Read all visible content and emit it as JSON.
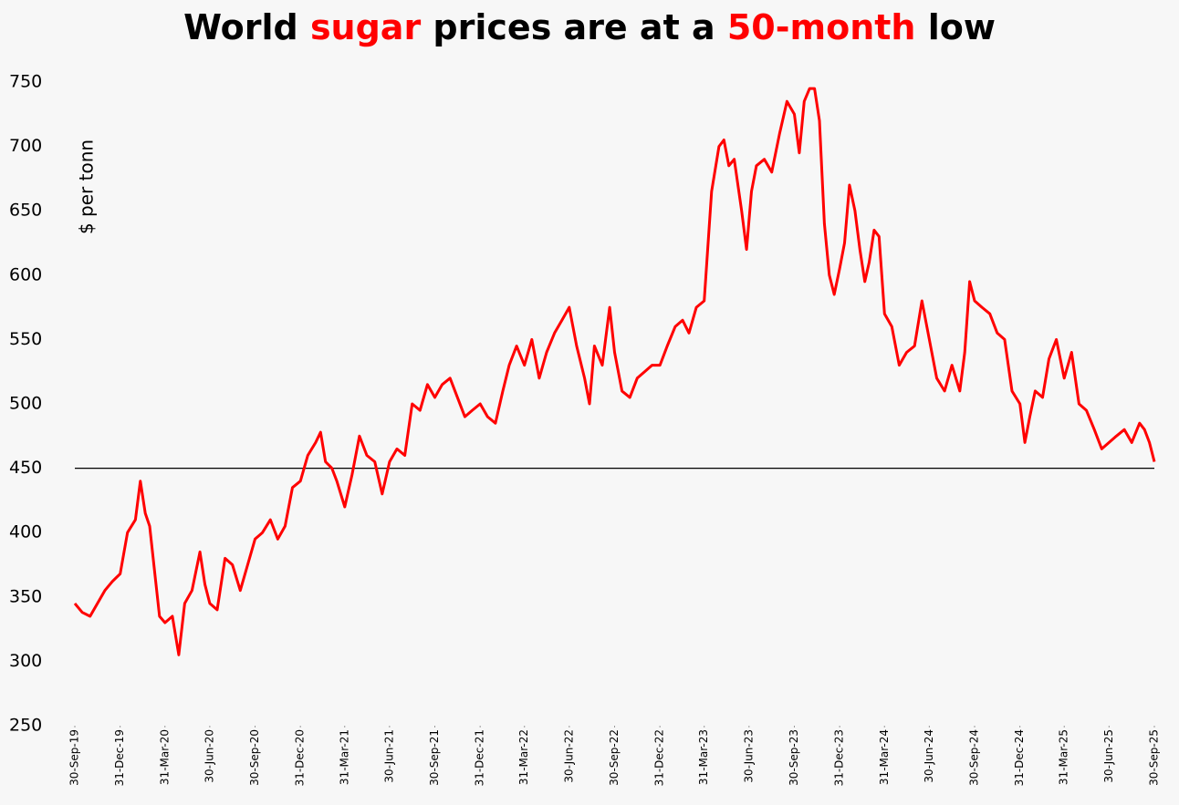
{
  "chart_data": {
    "type": "line",
    "title_parts": [
      {
        "text": "World ",
        "color": "#000000"
      },
      {
        "text": "sugar",
        "color": "#ff0000"
      },
      {
        "text": " prices are at a ",
        "color": "#000000"
      },
      {
        "text": "50-month",
        "color": "#ff0000"
      },
      {
        "text": " low",
        "color": "#000000"
      }
    ],
    "y_label": "$ per tonn",
    "ylim": [
      250,
      750
    ],
    "yticks": [
      250,
      300,
      350,
      400,
      450,
      500,
      550,
      600,
      650,
      700,
      750
    ],
    "xlim": [
      "2019-09-30",
      "2025-09-30"
    ],
    "xticks": [
      {
        "value": "2019-09-30",
        "label": "30-Sep-19"
      },
      {
        "value": "2019-12-31",
        "label": "31-Dec-19"
      },
      {
        "value": "2020-03-31",
        "label": "31-Mar-20"
      },
      {
        "value": "2020-06-30",
        "label": "30-Jun-20"
      },
      {
        "value": "2020-09-30",
        "label": "30-Sep-20"
      },
      {
        "value": "2020-12-31",
        "label": "31-Dec-20"
      },
      {
        "value": "2021-03-31",
        "label": "31-Mar-21"
      },
      {
        "value": "2021-06-30",
        "label": "30-Jun-21"
      },
      {
        "value": "2021-09-30",
        "label": "30-Sep-21"
      },
      {
        "value": "2021-12-31",
        "label": "31-Dec-21"
      },
      {
        "value": "2022-03-31",
        "label": "31-Mar-22"
      },
      {
        "value": "2022-06-30",
        "label": "30-Jun-22"
      },
      {
        "value": "2022-09-30",
        "label": "30-Sep-22"
      },
      {
        "value": "2022-12-31",
        "label": "31-Dec-22"
      },
      {
        "value": "2023-03-31",
        "label": "31-Mar-23"
      },
      {
        "value": "2023-06-30",
        "label": "30-Jun-23"
      },
      {
        "value": "2023-09-30",
        "label": "30-Sep-23"
      },
      {
        "value": "2023-12-31",
        "label": "31-Dec-23"
      },
      {
        "value": "2024-03-31",
        "label": "31-Mar-24"
      },
      {
        "value": "2024-06-30",
        "label": "30-Jun-24"
      },
      {
        "value": "2024-09-30",
        "label": "30-Sep-24"
      },
      {
        "value": "2024-12-31",
        "label": "31-Dec-24"
      },
      {
        "value": "2025-03-31",
        "label": "31-Mar-25"
      },
      {
        "value": "2025-06-30",
        "label": "30-Jun-25"
      },
      {
        "value": "2025-09-30",
        "label": "30-Sep-25"
      }
    ],
    "reference_line": 450,
    "grid": false,
    "x": [
      "2019-09-30",
      "2019-10-15",
      "2019-10-31",
      "2019-11-15",
      "2019-11-30",
      "2019-12-15",
      "2019-12-31",
      "2020-01-15",
      "2020-01-31",
      "2020-02-10",
      "2020-02-20",
      "2020-02-29",
      "2020-03-10",
      "2020-03-20",
      "2020-03-31",
      "2020-04-15",
      "2020-04-28",
      "2020-05-10",
      "2020-05-25",
      "2020-06-10",
      "2020-06-20",
      "2020-06-30",
      "2020-07-15",
      "2020-07-31",
      "2020-08-15",
      "2020-08-31",
      "2020-09-15",
      "2020-09-30",
      "2020-10-15",
      "2020-10-31",
      "2020-11-15",
      "2020-11-30",
      "2020-12-15",
      "2020-12-31",
      "2021-01-15",
      "2021-01-31",
      "2021-02-10",
      "2021-02-20",
      "2021-03-05",
      "2021-03-15",
      "2021-03-31",
      "2021-04-15",
      "2021-04-30",
      "2021-05-15",
      "2021-05-31",
      "2021-06-15",
      "2021-06-30",
      "2021-07-15",
      "2021-07-31",
      "2021-08-15",
      "2021-08-31",
      "2021-09-15",
      "2021-09-30",
      "2021-10-15",
      "2021-10-31",
      "2021-11-15",
      "2021-11-30",
      "2021-12-15",
      "2021-12-31",
      "2022-01-15",
      "2022-01-31",
      "2022-02-15",
      "2022-02-28",
      "2022-03-15",
      "2022-03-31",
      "2022-04-15",
      "2022-04-30",
      "2022-05-15",
      "2022-05-31",
      "2022-06-15",
      "2022-06-30",
      "2022-07-15",
      "2022-07-31",
      "2022-08-10",
      "2022-08-20",
      "2022-09-05",
      "2022-09-20",
      "2022-09-30",
      "2022-10-15",
      "2022-10-31",
      "2022-11-15",
      "2022-11-30",
      "2022-12-15",
      "2022-12-31",
      "2023-01-15",
      "2023-01-31",
      "2023-02-15",
      "2023-02-28",
      "2023-03-15",
      "2023-03-31",
      "2023-04-15",
      "2023-04-30",
      "2023-05-10",
      "2023-05-20",
      "2023-05-31",
      "2023-06-15",
      "2023-06-25",
      "2023-07-05",
      "2023-07-15",
      "2023-07-31",
      "2023-08-15",
      "2023-08-31",
      "2023-09-15",
      "2023-09-30",
      "2023-10-10",
      "2023-10-20",
      "2023-10-31",
      "2023-11-10",
      "2023-11-20",
      "2023-11-30",
      "2023-12-10",
      "2023-12-20",
      "2023-12-31",
      "2024-01-10",
      "2024-01-20",
      "2024-01-31",
      "2024-02-10",
      "2024-02-20",
      "2024-02-29",
      "2024-03-10",
      "2024-03-20",
      "2024-03-31",
      "2024-04-15",
      "2024-04-30",
      "2024-05-15",
      "2024-05-31",
      "2024-06-15",
      "2024-06-30",
      "2024-07-15",
      "2024-07-31",
      "2024-08-15",
      "2024-08-31",
      "2024-09-10",
      "2024-09-20",
      "2024-09-30",
      "2024-10-15",
      "2024-10-31",
      "2024-11-15",
      "2024-11-30",
      "2024-12-15",
      "2024-12-31",
      "2025-01-10",
      "2025-01-20",
      "2025-01-31",
      "2025-02-15",
      "2025-02-28",
      "2025-03-15",
      "2025-03-31",
      "2025-04-15",
      "2025-04-30",
      "2025-05-15",
      "2025-05-31",
      "2025-06-15",
      "2025-06-30",
      "2025-07-15",
      "2025-07-31",
      "2025-08-15",
      "2025-08-31",
      "2025-09-10",
      "2025-09-20",
      "2025-09-30"
    ],
    "series": [
      {
        "color": "#ff0000",
        "values": [
          345,
          338,
          335,
          345,
          355,
          362,
          368,
          400,
          410,
          440,
          415,
          405,
          370,
          335,
          330,
          335,
          305,
          345,
          355,
          385,
          360,
          345,
          340,
          380,
          375,
          355,
          375,
          395,
          400,
          410,
          395,
          405,
          435,
          440,
          460,
          470,
          478,
          455,
          450,
          440,
          420,
          445,
          475,
          460,
          455,
          430,
          455,
          465,
          460,
          500,
          495,
          515,
          505,
          515,
          520,
          505,
          490,
          495,
          500,
          490,
          485,
          510,
          530,
          545,
          530,
          550,
          520,
          540,
          555,
          565,
          575,
          545,
          520,
          500,
          545,
          530,
          575,
          540,
          510,
          505,
          520,
          525,
          530,
          530,
          545,
          560,
          565,
          555,
          575,
          580,
          665,
          700,
          705,
          685,
          690,
          650,
          620,
          665,
          685,
          690,
          680,
          710,
          735,
          725,
          695,
          735,
          745,
          745,
          720,
          640,
          600,
          585,
          605,
          625,
          670,
          650,
          620,
          595,
          610,
          635,
          630,
          570,
          560,
          530,
          540,
          545,
          580,
          550,
          520,
          510,
          530,
          510,
          540,
          595,
          580,
          575,
          570,
          555,
          550,
          510,
          500,
          470,
          490,
          510,
          505,
          535,
          550,
          520,
          540,
          500,
          495,
          480,
          465,
          470,
          475,
          480,
          470,
          485,
          480,
          470,
          455
        ]
      }
    ]
  }
}
